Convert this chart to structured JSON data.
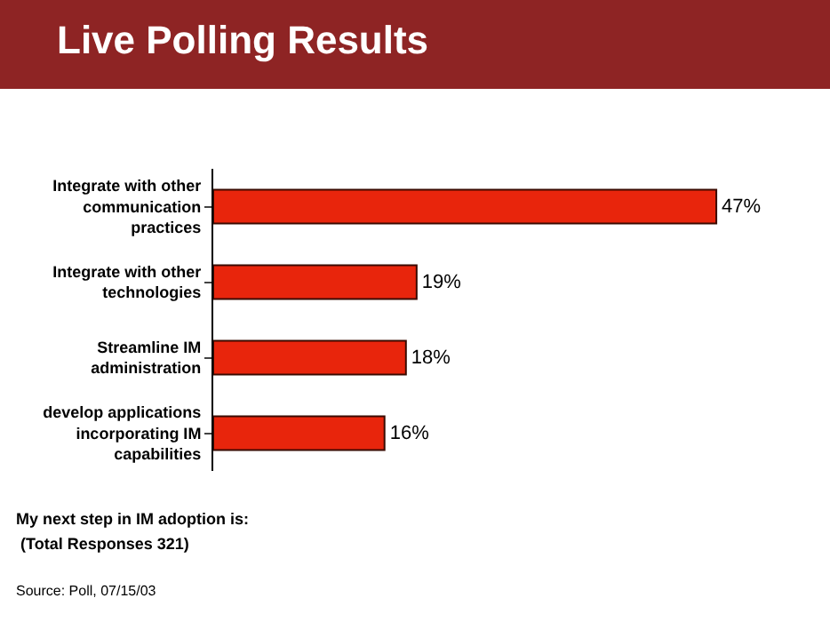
{
  "chart_data": {
    "type": "bar",
    "orientation": "horizontal",
    "title": "Live Polling Results",
    "categories": [
      "Integrate with other communication practices",
      "Integrate with other technologies",
      "Streamline IM administration",
      "develop applications incorporating IM capabilities"
    ],
    "values": [
      47,
      19,
      18,
      16
    ],
    "value_labels": [
      "47%",
      "19%",
      "18%",
      "16%"
    ],
    "color": "#e8250c",
    "legend": false,
    "annotations": [
      "My next step in IM adoption is:",
      " (Total Responses 321)",
      "Source: Poll, 07/15/03"
    ]
  }
}
